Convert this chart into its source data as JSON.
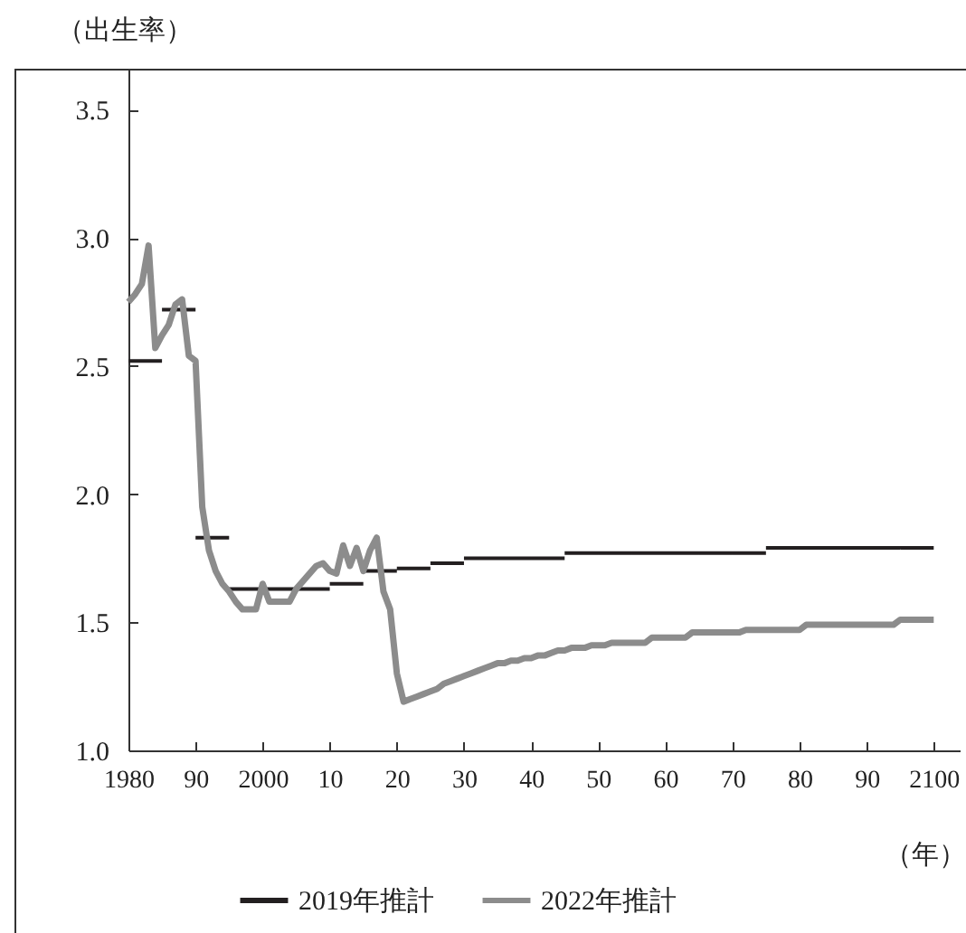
{
  "chart_data": {
    "type": "line",
    "ylabel": "（出生率）",
    "xlabel": "（年）",
    "xlim": [
      1980,
      2104
    ],
    "ylim": [
      1.0,
      3.66
    ],
    "xticks": [
      1980,
      {
        "value": 1990,
        "label": "90"
      },
      2000,
      {
        "value": 2010,
        "label": "10"
      },
      {
        "value": 2020,
        "label": "20"
      },
      {
        "value": 2030,
        "label": "30"
      },
      {
        "value": 2040,
        "label": "40"
      },
      {
        "value": 2050,
        "label": "50"
      },
      {
        "value": 2060,
        "label": "60"
      },
      {
        "value": 2070,
        "label": "70"
      },
      {
        "value": 2080,
        "label": "80"
      },
      {
        "value": 2090,
        "label": "90"
      },
      2100
    ],
    "yticks": [
      {
        "value": 1,
        "label": "1.0"
      },
      1.5,
      {
        "value": 2,
        "label": "2.0"
      },
      2.5,
      {
        "value": 3,
        "label": "3.0"
      },
      3.5
    ],
    "grid": false,
    "legend": "bottom",
    "line_style": "solid",
    "marker": "none",
    "series": [
      {
        "name": "2019年推計",
        "color": "#231f20",
        "x": [
          1980,
          1985,
          null,
          1985,
          1990,
          null,
          1990,
          1995,
          null,
          1995,
          2000,
          null,
          2000,
          2005,
          null,
          2005,
          2010,
          null,
          2010,
          2015,
          null,
          2015,
          2020,
          null,
          2020,
          2025,
          null,
          2025,
          2030,
          null,
          2030,
          2035,
          null,
          2035,
          2040,
          null,
          2040,
          2045,
          null,
          2045,
          2050,
          null,
          2050,
          2055,
          null,
          2055,
          2060,
          null,
          2060,
          2065,
          null,
          2065,
          2070,
          null,
          2070,
          2075,
          null,
          2075,
          2080,
          null,
          2080,
          2085,
          null,
          2085,
          2090,
          null,
          2090,
          2095,
          null,
          2095,
          2100
        ],
        "values": [
          2.52,
          2.52,
          null,
          2.72,
          2.72,
          null,
          1.83,
          1.83,
          null,
          1.63,
          1.63,
          null,
          1.63,
          1.63,
          null,
          1.63,
          1.63,
          null,
          1.65,
          1.65,
          null,
          1.7,
          1.7,
          null,
          1.71,
          1.71,
          null,
          1.73,
          1.73,
          null,
          1.75,
          1.75,
          null,
          1.75,
          1.75,
          null,
          1.75,
          1.75,
          null,
          1.77,
          1.77,
          null,
          1.77,
          1.77,
          null,
          1.77,
          1.77,
          null,
          1.77,
          1.77,
          null,
          1.77,
          1.77,
          null,
          1.77,
          1.77,
          null,
          1.79,
          1.79,
          null,
          1.79,
          1.79,
          null,
          1.79,
          1.79,
          null,
          1.79,
          1.79,
          null,
          1.79,
          1.79
        ]
      },
      {
        "name": "2022年推計",
        "color": "#8c8c8c",
        "x": [
          1980,
          1981,
          1982,
          1983,
          1984,
          1985,
          1986,
          1987,
          1988,
          1989,
          1990,
          1991,
          1992,
          1993,
          1994,
          1995,
          1996,
          1997,
          1998,
          1999,
          2000,
          2001,
          2002,
          2003,
          2004,
          2005,
          2006,
          2007,
          2008,
          2009,
          2010,
          2011,
          2012,
          2013,
          2014,
          2015,
          2016,
          2017,
          2018,
          2019,
          2020,
          2021,
          2022,
          2023,
          2024,
          2025,
          2026,
          2027,
          2028,
          2029,
          2030,
          2031,
          2032,
          2033,
          2034,
          2035,
          2036,
          2037,
          2038,
          2039,
          2040,
          2041,
          2042,
          2043,
          2044,
          2045,
          2046,
          2047,
          2048,
          2049,
          2050,
          2051,
          2052,
          2053,
          2054,
          2055,
          2056,
          2057,
          2058,
          2059,
          2060,
          2061,
          2062,
          2063,
          2064,
          2065,
          2066,
          2067,
          2068,
          2069,
          2070,
          2071,
          2072,
          2073,
          2074,
          2075,
          2076,
          2077,
          2078,
          2079,
          2080,
          2081,
          2082,
          2083,
          2084,
          2085,
          2086,
          2087,
          2088,
          2089,
          2090,
          2091,
          2092,
          2093,
          2094,
          2095,
          2096,
          2097,
          2098,
          2099,
          2100
        ],
        "values": [
          2.75,
          2.78,
          2.82,
          2.97,
          2.57,
          2.62,
          2.66,
          2.74,
          2.76,
          2.54,
          2.52,
          1.95,
          1.78,
          1.7,
          1.65,
          1.62,
          1.58,
          1.55,
          1.55,
          1.55,
          1.65,
          1.58,
          1.58,
          1.58,
          1.58,
          1.63,
          1.66,
          1.69,
          1.72,
          1.73,
          1.7,
          1.69,
          1.8,
          1.72,
          1.79,
          1.7,
          1.78,
          1.83,
          1.62,
          1.55,
          1.3,
          1.19,
          1.2,
          1.21,
          1.22,
          1.23,
          1.24,
          1.26,
          1.27,
          1.28,
          1.29,
          1.3,
          1.31,
          1.32,
          1.33,
          1.34,
          1.34,
          1.35,
          1.35,
          1.36,
          1.36,
          1.37,
          1.37,
          1.38,
          1.39,
          1.39,
          1.4,
          1.4,
          1.4,
          1.41,
          1.41,
          1.41,
          1.42,
          1.42,
          1.42,
          1.42,
          1.42,
          1.42,
          1.44,
          1.44,
          1.44,
          1.44,
          1.44,
          1.44,
          1.46,
          1.46,
          1.46,
          1.46,
          1.46,
          1.46,
          1.46,
          1.46,
          1.47,
          1.47,
          1.47,
          1.47,
          1.47,
          1.47,
          1.47,
          1.47,
          1.47,
          1.49,
          1.49,
          1.49,
          1.49,
          1.49,
          1.49,
          1.49,
          1.49,
          1.49,
          1.49,
          1.49,
          1.49,
          1.49,
          1.49,
          1.51,
          1.51,
          1.51,
          1.51,
          1.51,
          1.51
        ]
      }
    ]
  }
}
